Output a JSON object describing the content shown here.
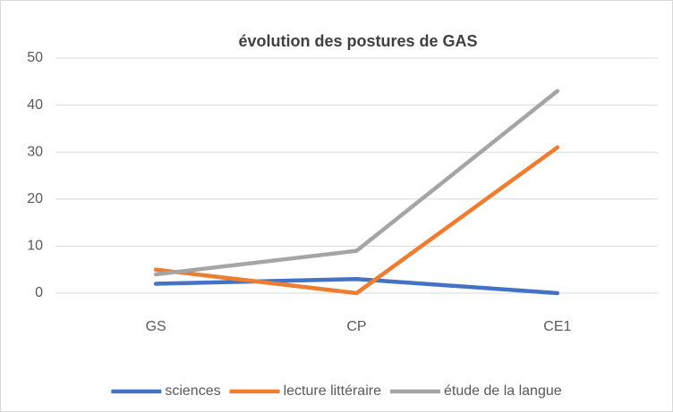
{
  "chart_data": {
    "type": "line",
    "title": "évolution des postures de GAS",
    "categories": [
      "GS",
      "CP",
      "CE1"
    ],
    "series": [
      {
        "name": "sciences",
        "color": "#4472c4",
        "values": [
          2,
          3,
          0
        ]
      },
      {
        "name": "lecture littéraire",
        "color": "#ed7d31",
        "values": [
          5,
          0,
          31
        ]
      },
      {
        "name": "étude de la langue",
        "color": "#a5a5a5",
        "values": [
          4,
          9,
          43
        ]
      }
    ],
    "ylim": [
      0,
      50
    ],
    "yticks": [
      0,
      10,
      20,
      30,
      40,
      50
    ],
    "grid": true,
    "legend": "bottom"
  }
}
